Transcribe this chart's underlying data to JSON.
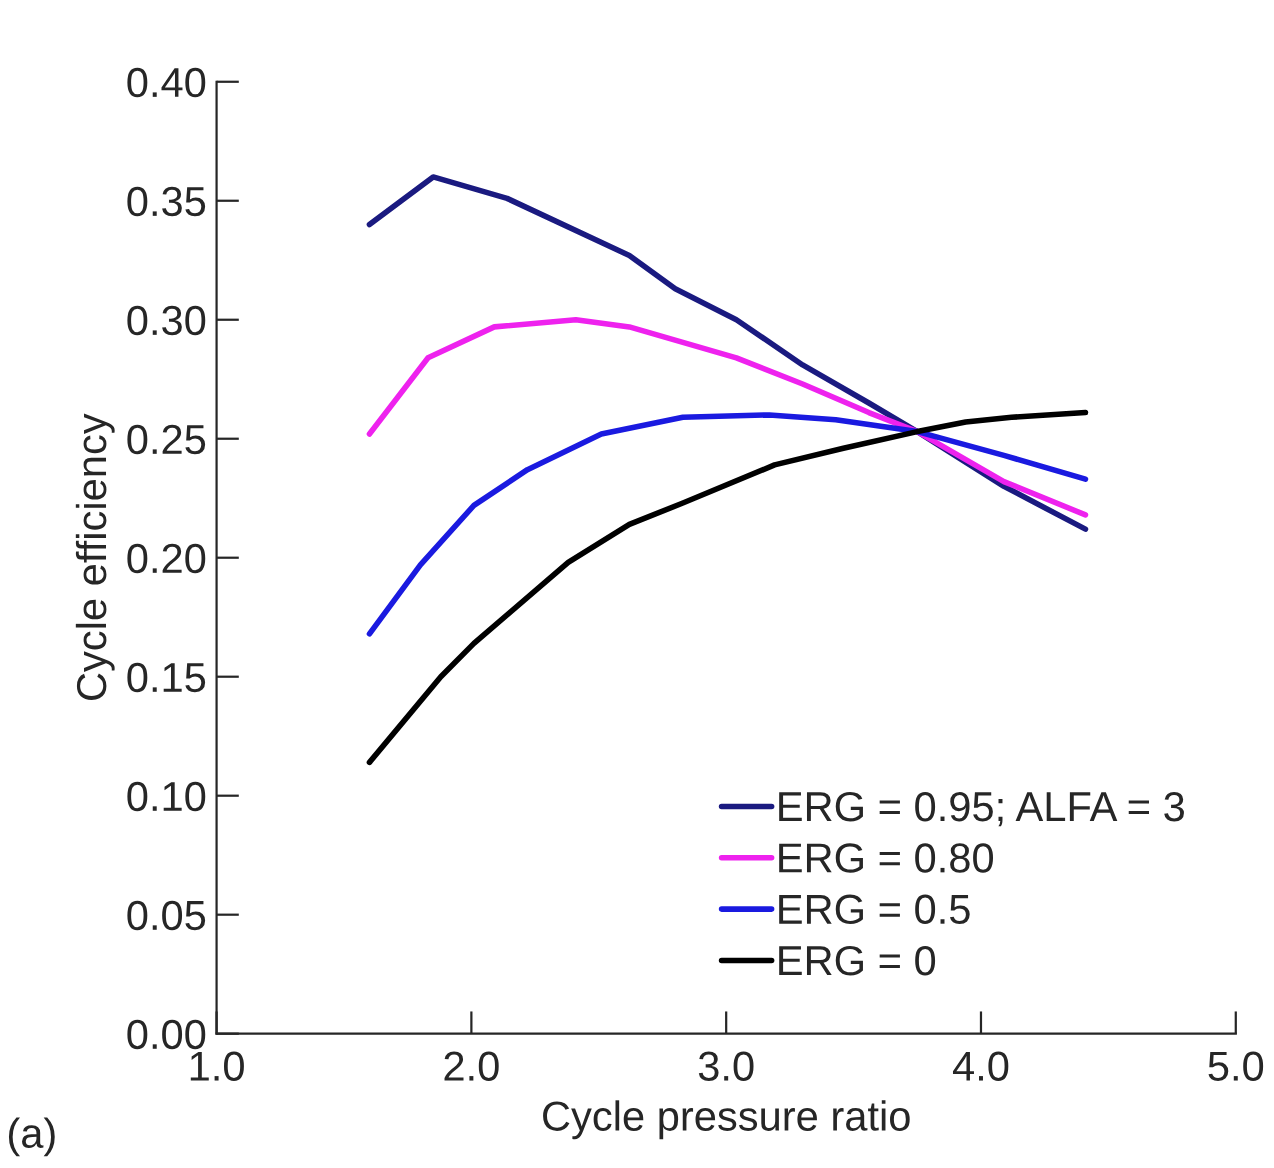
{
  "chart_data": {
    "type": "line",
    "xlabel": "Cycle pressure ratio",
    "ylabel": "Cycle efficiency",
    "xlim": [
      1.0,
      5.0
    ],
    "xticks": [
      {
        "value": 1.0,
        "label": "1.0"
      },
      {
        "value": 2.0,
        "label": "2.0"
      },
      {
        "value": 3.0,
        "label": "3.0"
      },
      {
        "value": 4.0,
        "label": "4.0"
      },
      {
        "value": 5.0,
        "label": "5.0"
      }
    ],
    "ylim": [
      0.0,
      0.4
    ],
    "yticks": [
      {
        "value": 0.0,
        "label": "0.00"
      },
      {
        "value": 0.05,
        "label": "0.05"
      },
      {
        "value": 0.1,
        "label": "0.10"
      },
      {
        "value": 0.15,
        "label": "0.15"
      },
      {
        "value": 0.2,
        "label": "0.20"
      },
      {
        "value": 0.25,
        "label": "0.25"
      },
      {
        "value": 0.3,
        "label": "0.30"
      },
      {
        "value": 0.35,
        "label": "0.35"
      },
      {
        "value": 0.4,
        "label": "0.40"
      }
    ],
    "grid": false,
    "legend": "bottom right",
    "marker": "none",
    "line_style": "solid",
    "annotations": [
      "(a)"
    ],
    "series": [
      {
        "name": "ERG = 0.95; ALFA = 3",
        "color": "#1a1a80",
        "x": [
          1.6,
          1.85,
          2.14,
          2.62,
          2.8,
          3.04,
          3.3,
          3.56,
          3.75,
          4.09,
          4.41
        ],
        "values": [
          0.34,
          0.36,
          0.351,
          0.327,
          0.313,
          0.3,
          0.281,
          0.265,
          0.253,
          0.23,
          0.212
        ]
      },
      {
        "name": "ERG = 0.80",
        "color": "#ee22ee",
        "x": [
          1.6,
          1.83,
          2.09,
          2.41,
          2.62,
          3.04,
          3.3,
          3.56,
          3.75,
          4.09,
          4.41
        ],
        "values": [
          0.252,
          0.284,
          0.297,
          0.3,
          0.297,
          0.284,
          0.273,
          0.261,
          0.253,
          0.232,
          0.218
        ]
      },
      {
        "name": "ERG = 0.5",
        "color": "#1a1ae0",
        "x": [
          1.6,
          1.8,
          2.01,
          2.22,
          2.51,
          2.83,
          3.17,
          3.43,
          3.75,
          4.09,
          4.41
        ],
        "values": [
          0.168,
          0.197,
          0.222,
          0.237,
          0.252,
          0.259,
          0.26,
          0.258,
          0.253,
          0.243,
          0.233
        ]
      },
      {
        "name": "ERG = 0",
        "color": "#000000",
        "x": [
          1.6,
          1.88,
          2.01,
          2.38,
          2.62,
          2.83,
          3.19,
          3.46,
          3.75,
          3.94,
          4.12,
          4.41
        ],
        "values": [
          0.114,
          0.15,
          0.164,
          0.198,
          0.214,
          0.223,
          0.239,
          0.246,
          0.253,
          0.257,
          0.259,
          0.261
        ]
      }
    ]
  }
}
